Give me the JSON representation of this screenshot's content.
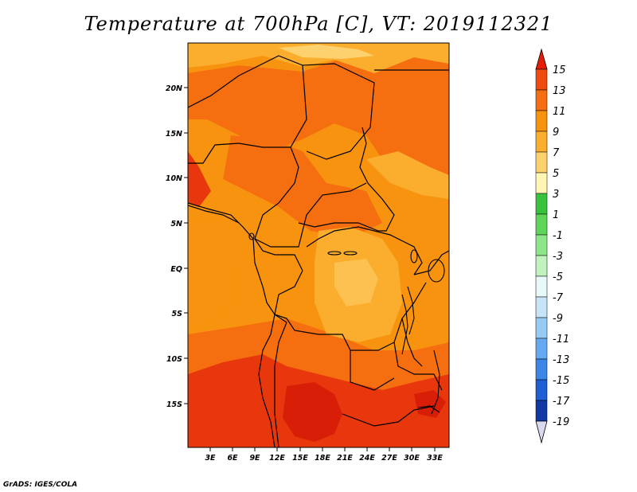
{
  "title": "Temperature at 700hPa [C], VT: 2019112321",
  "credit": "GrADS: IGES/COLA",
  "map": {
    "region": "Central Africa",
    "x_ticks": [
      "3E",
      "6E",
      "9E",
      "12E",
      "15E",
      "18E",
      "21E",
      "24E",
      "27E",
      "30E",
      "33E"
    ],
    "y_ticks": [
      "20N",
      "15N",
      "10N",
      "5N",
      "EQ",
      "5S",
      "10S",
      "15S"
    ]
  },
  "colorbar": {
    "labels": [
      "15",
      "13",
      "11",
      "9",
      "7",
      "5",
      "3",
      "1",
      "-1",
      "-3",
      "-5",
      "-7",
      "-9",
      "-11",
      "-13",
      "-15",
      "-17",
      "-19"
    ],
    "colors": [
      "#e51f07",
      "#f04a0e",
      "#f56f10",
      "#f8930f",
      "#fbae2d",
      "#fdd16e",
      "#fff5b4",
      "#39c23d",
      "#5fd65a",
      "#8de68a",
      "#bff2bd",
      "#e6f8f8",
      "#c7e4f7",
      "#98cbf3",
      "#65aaf0",
      "#3b86e6",
      "#1f5ed3",
      "#1238a6",
      "#091675",
      "#d8d8ef"
    ]
  },
  "palette": {
    "t13": "#e8370c",
    "t11": "#f56f10",
    "t9": "#f8930f",
    "t7": "#fbae2d",
    "t5": "#fdd16e",
    "t15": "#d91e08"
  }
}
